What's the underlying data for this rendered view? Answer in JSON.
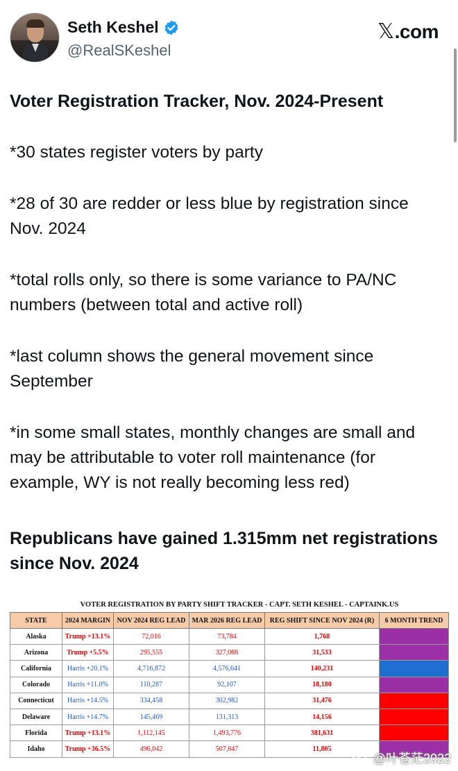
{
  "tweet": {
    "author_name": "Seth Keshel",
    "author_handle": "@RealSKeshel",
    "site_label": "X.com",
    "site_glyph": "𝕏",
    "site_suffix": ".com",
    "verified_color": "#1d9bf0",
    "paragraphs": [
      "Voter Registration Tracker, Nov. 2024-Present",
      "*30 states register voters by party",
      "*28 of 30 are redder or less blue by registration since Nov. 2024",
      "*total rolls only, so there is some variance to PA/NC numbers (between total and active roll)",
      "*last column shows the general movement since September",
      "*in some small states, monthly changes are small and may be attributable to voter roll maintenance (for example, WY is not really becoming less red)"
    ],
    "headline": "Republicans have gained 1.315mm net registrations since Nov. 2024"
  },
  "table": {
    "title": "VOTER REGISTRATION BY PARTY SHIFT TRACKER - CAPT. SETH KESHEL - CAPTAINK.US",
    "headers": [
      "STATE",
      "2024 MARGIN",
      "NOV 2024 REG LEAD",
      "MAR 2026 REG LEAD",
      "REG SHIFT SINCE NOV 2024 (R)",
      "6 MONTH TREND"
    ],
    "rows": [
      {
        "state": "Alaska",
        "margin": "Trump +13.1%",
        "party": "trump",
        "nov": "72,016",
        "mar": "73,784",
        "shift": "1,768",
        "trend": "#9b30a6"
      },
      {
        "state": "Arizona",
        "margin": "Trump +5.5%",
        "party": "trump",
        "nov": "295,555",
        "mar": "327,088",
        "shift": "31,533",
        "trend": "#9b30a6"
      },
      {
        "state": "California",
        "margin": "Harris +20.1%",
        "party": "harris",
        "nov": "4,716,872",
        "mar": "4,576,641",
        "shift": "140,231",
        "trend": "#1f6fd1"
      },
      {
        "state": "Colorado",
        "margin": "Harris +11.0%",
        "party": "harris",
        "nov": "110,287",
        "mar": "92,107",
        "shift": "18,180",
        "trend": "#9b30a6"
      },
      {
        "state": "Connecticut",
        "margin": "Harris +14.5%",
        "party": "harris",
        "nov": "334,458",
        "mar": "302,982",
        "shift": "31,476",
        "trend": "#ff0000"
      },
      {
        "state": "Delaware",
        "margin": "Harris +14.7%",
        "party": "harris",
        "nov": "145,469",
        "mar": "131,313",
        "shift": "14,156",
        "trend": "#ff0000"
      },
      {
        "state": "Florida",
        "margin": "Trump +13.1%",
        "party": "trump",
        "nov": "1,112,145",
        "mar": "1,493,776",
        "shift": "381,631",
        "trend": "#ff0000"
      },
      {
        "state": "Idaho",
        "margin": "Trump +36.5%",
        "party": "trump",
        "nov": "496,042",
        "mar": "507,847",
        "shift": "11,805",
        "trend": "#9b30a6"
      }
    ]
  },
  "watermark": "@叶苍茫2022"
}
